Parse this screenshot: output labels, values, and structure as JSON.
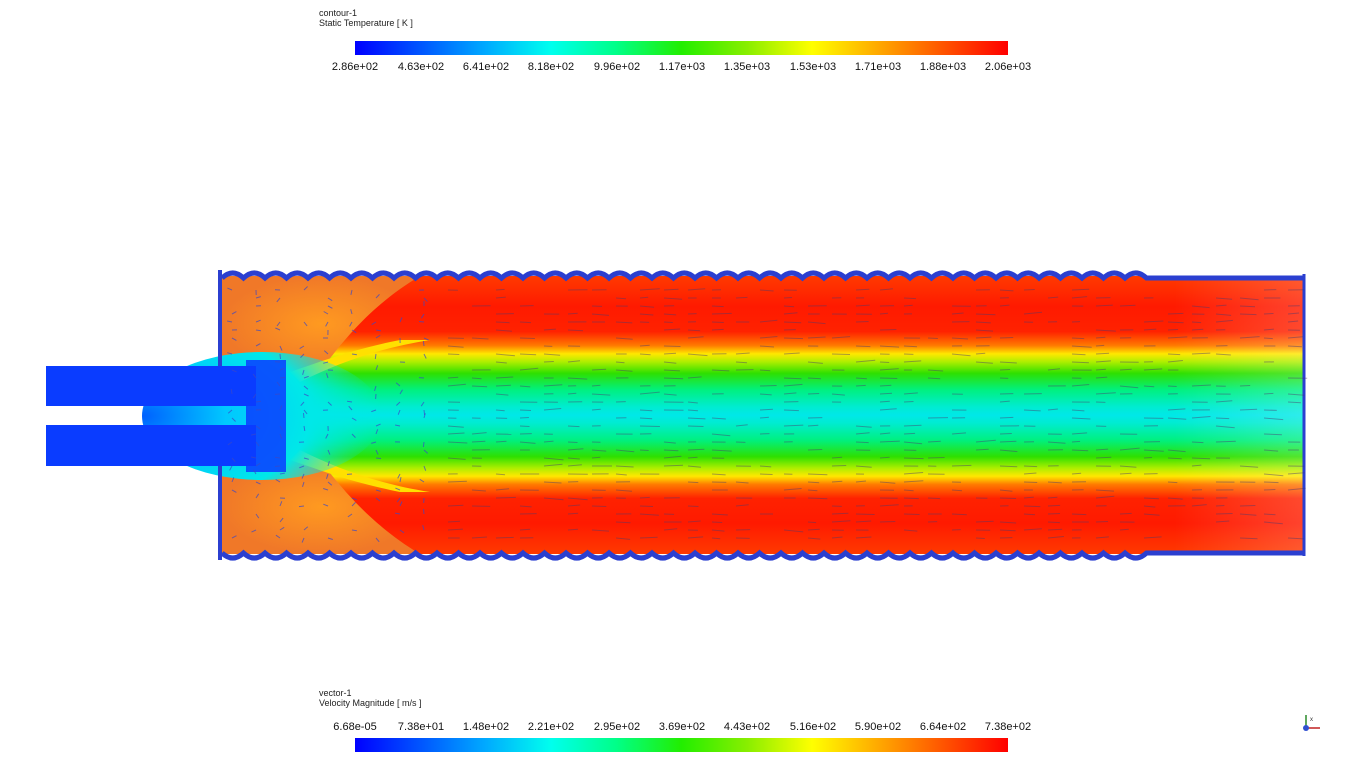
{
  "contour_legend": {
    "name": "contour-1",
    "quantity": "Static Temperature [ K ]",
    "ticks": [
      "2.86e+02",
      "4.63e+02",
      "6.41e+02",
      "8.18e+02",
      "9.96e+02",
      "1.17e+03",
      "1.35e+03",
      "1.53e+03",
      "1.71e+03",
      "1.88e+03",
      "2.06e+03"
    ]
  },
  "vector_legend": {
    "name": "vector-1",
    "quantity": "Velocity Magnitude [ m/s ]",
    "ticks": [
      "6.68e-05",
      "7.38e+01",
      "1.48e+02",
      "2.21e+02",
      "2.95e+02",
      "3.69e+02",
      "4.43e+02",
      "5.16e+02",
      "5.90e+02",
      "6.64e+02",
      "7.38e+02"
    ]
  },
  "colormap": [
    "#0000ff",
    "#00aaff",
    "#00ffee",
    "#22ee00",
    "#ffff00",
    "#ff5500",
    "#ff0000"
  ],
  "colors": {
    "wall_vectors": "#2b3fd0",
    "inlet": "#0a3cff"
  }
}
